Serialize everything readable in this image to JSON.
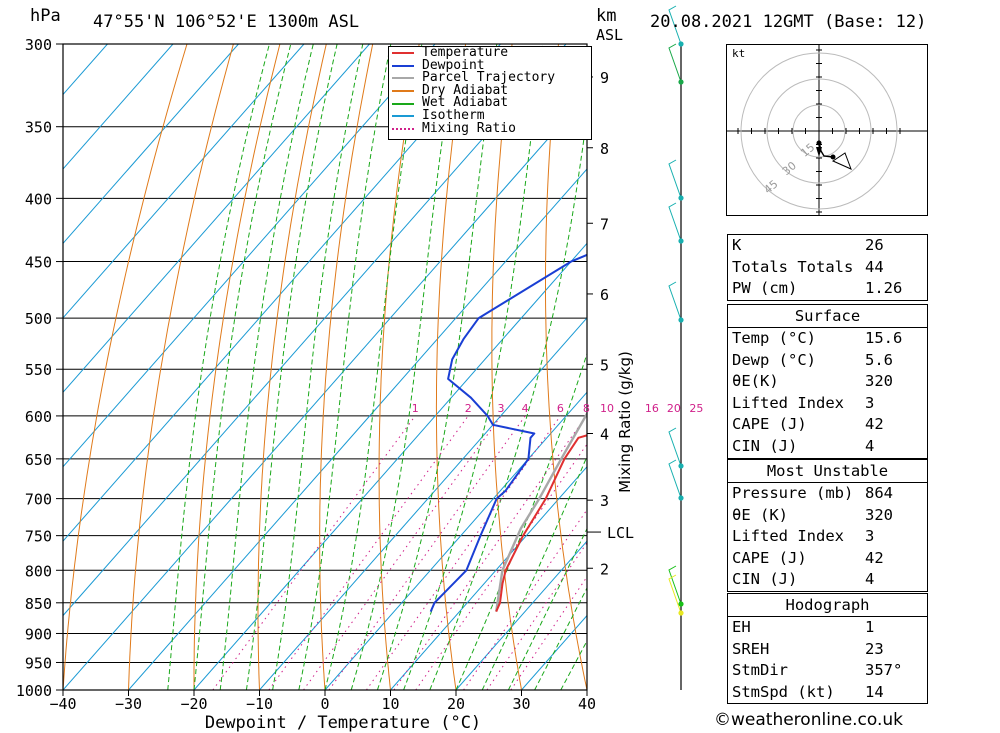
{
  "header": {
    "pressure_unit": "hPa",
    "location": "47°55'N  106°52'E  1300m  ASL",
    "km_label": "km",
    "asl_label": "ASL",
    "datetime": "20.08.2021  12GMT  (Base: 12)"
  },
  "colors": {
    "temperature": "#e03030",
    "dewpoint": "#1a3fd4",
    "parcel": "#a8a8a8",
    "dry_adiabat": "#e07a1a",
    "wet_adiabat": "#1aa81a",
    "isotherm": "#1a9ad4",
    "mixing_ratio": "#d0208a"
  },
  "legend": [
    {
      "label": "Temperature",
      "color": "#e03030",
      "style": "solid"
    },
    {
      "label": "Dewpoint",
      "color": "#1a3fd4",
      "style": "solid"
    },
    {
      "label": "Parcel Trajectory",
      "color": "#a8a8a8",
      "style": "solid"
    },
    {
      "label": "Dry Adiabat",
      "color": "#e07a1a",
      "style": "solid"
    },
    {
      "label": "Wet Adiabat",
      "color": "#1aa81a",
      "style": "solid"
    },
    {
      "label": "Isotherm",
      "color": "#1a9ad4",
      "style": "solid"
    },
    {
      "label": "Mixing Ratio",
      "color": "#d0208a",
      "style": "dotted"
    }
  ],
  "chart_data": {
    "type": "line",
    "xlabel": "Dewpoint / Temperature (°C)",
    "ylabel": "hPa",
    "right_axis_label": "Mixing Ratio (g/kg)",
    "xlim": [
      -40,
      40
    ],
    "ylim": [
      1000,
      300
    ],
    "x_ticks": [
      -40,
      -30,
      -20,
      -10,
      0,
      10,
      20,
      30,
      40
    ],
    "x_tick_labels": [
      "−40",
      "−30",
      "−20",
      "−10",
      "0",
      "10",
      "20",
      "30",
      "40"
    ],
    "pressure_levels": [
      300,
      350,
      400,
      450,
      500,
      550,
      600,
      650,
      700,
      750,
      800,
      850,
      900,
      950,
      1000
    ],
    "series": [
      {
        "name": "Temperature",
        "points": [
          [
            864,
            15.6
          ],
          [
            850,
            15.0
          ],
          [
            820,
            12.8
          ],
          [
            800,
            11.5
          ],
          [
            750,
            9.5
          ],
          [
            700,
            8.0
          ],
          [
            650,
            5.5
          ],
          [
            625,
            4.8
          ],
          [
            620,
            6.5
          ],
          [
            600,
            5.5
          ],
          [
            550,
            4.0
          ],
          [
            520,
            2.5
          ],
          [
            500,
            0.0
          ],
          [
            450,
            -8.0
          ],
          [
            420,
            -11.0
          ],
          [
            400,
            -11.5
          ],
          [
            350,
            -17.0
          ],
          [
            300,
            -25.0
          ]
        ]
      },
      {
        "name": "Dewpoint",
        "points": [
          [
            864,
            5.6
          ],
          [
            850,
            5.0
          ],
          [
            800,
            5.5
          ],
          [
            750,
            3.0
          ],
          [
            700,
            0.5
          ],
          [
            690,
            0.8
          ],
          [
            650,
            0.0
          ],
          [
            625,
            -2.5
          ],
          [
            620,
            -2.5
          ],
          [
            610,
            -10.0
          ],
          [
            600,
            -12.0
          ],
          [
            580,
            -17.0
          ],
          [
            560,
            -23.0
          ],
          [
            540,
            -25.0
          ],
          [
            520,
            -26.0
          ],
          [
            500,
            -26.5
          ],
          [
            450,
            -20.0
          ],
          [
            420,
            -11.5
          ],
          [
            400,
            -18.0
          ],
          [
            380,
            -23.0
          ],
          [
            370,
            -25.0
          ],
          [
            350,
            -25.0
          ],
          [
            300,
            -20.0
          ]
        ]
      },
      {
        "name": "Parcel Trajectory",
        "points": [
          [
            864,
            15.6
          ],
          [
            800,
            11.0
          ],
          [
            740,
            8.2
          ],
          [
            700,
            7.0
          ],
          [
            650,
            5.0
          ],
          [
            600,
            3.0
          ],
          [
            550,
            0.5
          ],
          [
            500,
            -3.0
          ],
          [
            450,
            -8.0
          ],
          [
            400,
            -15.0
          ],
          [
            350,
            -23.0
          ],
          [
            300,
            -31.0
          ]
        ]
      }
    ],
    "mixing_ratio_labels": [
      "1",
      "2",
      "3",
      "4",
      "6",
      "8",
      "10",
      "16",
      "20",
      "25"
    ],
    "mixing_ratio_values": [
      1,
      2,
      3,
      4,
      6,
      8,
      10,
      16,
      20,
      25
    ],
    "km_ticks": [
      {
        "label": "9",
        "p": 319
      },
      {
        "label": "8",
        "p": 364
      },
      {
        "label": "7",
        "p": 419
      },
      {
        "label": "6",
        "p": 478
      },
      {
        "label": "5",
        "p": 545
      },
      {
        "label": "4",
        "p": 620
      },
      {
        "label": "3",
        "p": 702
      },
      {
        "label": "2",
        "p": 797
      }
    ],
    "lcl": {
      "label": "LCL",
      "p": 745
    }
  },
  "hodograph": {
    "unit_label": "kt",
    "ring_labels": [
      "15",
      "30",
      "45"
    ],
    "ring_values_kt": [
      15,
      30,
      45
    ]
  },
  "indices": [
    {
      "label": "K",
      "value": "26"
    },
    {
      "label": "Totals Totals",
      "value": "44"
    },
    {
      "label": "PW (cm)",
      "value": "1.26"
    }
  ],
  "surface": {
    "title": "Surface",
    "rows": [
      {
        "label": "Temp (°C)",
        "value": "15.6"
      },
      {
        "label": "Dewp (°C)",
        "value": "5.6"
      },
      {
        "label": "θE(K)",
        "value": "320"
      },
      {
        "label": "Lifted Index",
        "value": "3"
      },
      {
        "label": "CAPE (J)",
        "value": "42"
      },
      {
        "label": "CIN (J)",
        "value": "4"
      }
    ]
  },
  "most_unstable": {
    "title": "Most Unstable",
    "rows": [
      {
        "label": "Pressure (mb)",
        "value": "864"
      },
      {
        "label": "θE (K)",
        "value": "320"
      },
      {
        "label": "Lifted Index",
        "value": "3"
      },
      {
        "label": "CAPE (J)",
        "value": "42"
      },
      {
        "label": "CIN (J)",
        "value": "4"
      }
    ]
  },
  "hodograph_table": {
    "title": "Hodograph",
    "rows": [
      {
        "label": "EH",
        "value": "1"
      },
      {
        "label": "SREH",
        "value": "23"
      },
      {
        "label": "StmDir",
        "value": "357°"
      },
      {
        "label": "StmSpd (kt)",
        "value": "14"
      }
    ]
  },
  "footer": "©weatheronline.co.uk"
}
